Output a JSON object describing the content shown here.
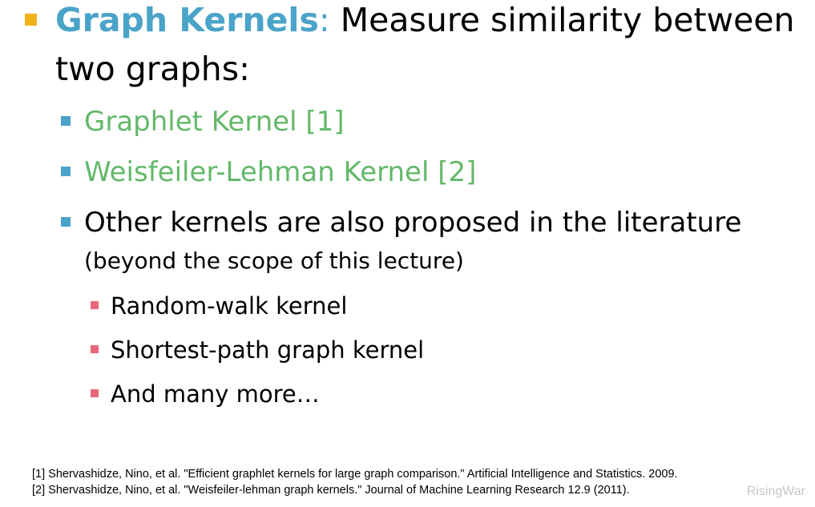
{
  "title": {
    "accent": "Graph Kernels",
    "colon": ":",
    "rest_line1": " Measure similarity between",
    "line2": "two graphs:"
  },
  "items": [
    {
      "text": "Graphlet Kernel [1]"
    },
    {
      "text": "Weisfeiler-Lehman Kernel [2]"
    },
    {
      "text": "Other kernels are also proposed in the literature",
      "subtext": "(beyond the scope of this lecture)"
    }
  ],
  "subitems": [
    {
      "text": "Random-walk kernel"
    },
    {
      "text": "Shortest-path graph kernel"
    },
    {
      "text": "And many more…"
    }
  ],
  "references": [
    "[1] Shervashidze, Nino, et al. \"Efficient graphlet kernels for large graph comparison.\" Artificial Intelligence and Statistics. 2009.",
    "[2] Shervashidze, Nino, et al. \"Weisfeiler-lehman graph kernels.\" Journal of Machine Learning Research 12.9 (2011)."
  ],
  "watermark": "RisingWar",
  "colors": {
    "title_accent": "#4aa3c8",
    "level1_bullet": "#f2b21a",
    "level2_bullet": "#4aa3c8",
    "level2_green_text": "#63b86a",
    "level3_bullet": "#e8677a"
  }
}
